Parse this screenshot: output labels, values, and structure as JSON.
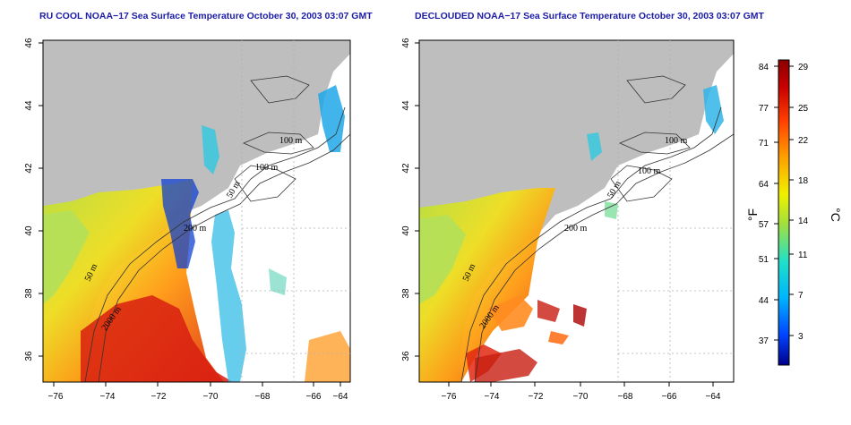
{
  "panels": [
    {
      "title": "RU COOL NOAA−17 Sea Surface Temperature October 30, 2003 03:07 GMT",
      "x_ticks": [
        "−76",
        "−74",
        "−72",
        "−70",
        "−68",
        "−66",
        "−64"
      ],
      "y_ticks": [
        "46",
        "44",
        "42",
        "40",
        "38",
        "36"
      ],
      "contour_labels": [
        "100 m",
        "100 m",
        "50 m",
        "200 m",
        "50 m",
        "2000 m"
      ]
    },
    {
      "title": "DECLOUDED NOAA−17 Sea Surface Temperature October 30, 2003 03:07 GMT",
      "x_ticks": [
        "−76",
        "−74",
        "−72",
        "−70",
        "−68",
        "−66",
        "−64"
      ],
      "y_ticks": [
        "46",
        "44",
        "42",
        "40",
        "38",
        "36"
      ],
      "contour_labels": [
        "100 m",
        "100 m",
        "50 m",
        "200 m",
        "50 m",
        "2000 m"
      ]
    }
  ],
  "colorbar": {
    "fahrenheit_ticks": [
      "84",
      "77",
      "71",
      "64",
      "57",
      "51",
      "44",
      "37"
    ],
    "celsius_ticks": [
      "29",
      "25",
      "22",
      "18",
      "14",
      "11",
      "7",
      "3"
    ],
    "f_unit": "°F",
    "c_unit": "°C"
  },
  "colors": {
    "land": "#bebebe",
    "water": "#ffffff",
    "title": "#1c1ca6",
    "grid": "#b0b0b0",
    "colorbar_stops": [
      "#00008b",
      "#0044ff",
      "#00b4ff",
      "#20e0c8",
      "#a0e040",
      "#f0f000",
      "#ffa000",
      "#ff4000",
      "#c80000",
      "#8b0000"
    ]
  }
}
